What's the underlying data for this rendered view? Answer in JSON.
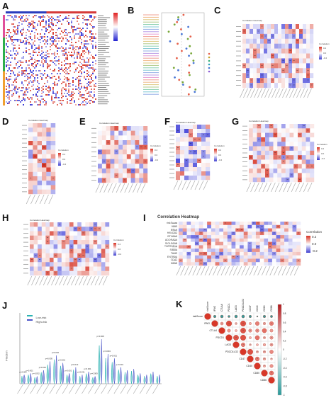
{
  "panels": {
    "A": {
      "letter": "A"
    },
    "B": {
      "letter": "B"
    },
    "C": {
      "letter": "C",
      "title": "Correlation Heatmap",
      "legend_title": "Correlation",
      "legend_ticks": [
        "0.2",
        "0.0",
        "-0.2"
      ]
    },
    "D": {
      "letter": "D",
      "title": "Correlation Heatmap",
      "legend_title": "Correlation",
      "legend_ticks": [
        "0.2",
        "0.0",
        "-0.2"
      ]
    },
    "E": {
      "letter": "E",
      "title": "Correlation Heatmap",
      "legend_title": "Correlation",
      "legend_ticks": [
        "0.2",
        "0.0",
        "-0.2"
      ]
    },
    "F": {
      "letter": "F",
      "title": "Correlation Heatmap",
      "legend_title": "Correlation",
      "legend_ticks": [
        "0.2",
        "0.0",
        "-0.2"
      ]
    },
    "G": {
      "letter": "G",
      "title": "Correlation Heatmap",
      "legend_title": "Correlation",
      "legend_ticks": [
        "0.2",
        "0.0",
        "-0.2"
      ]
    },
    "H": {
      "letter": "H",
      "title": "Correlation Heatmap",
      "legend_title": "Correlation",
      "legend_ticks": [
        "0.2",
        "0.0",
        "-0.2"
      ]
    },
    "I": {
      "letter": "I",
      "title": "Correlation Heatmap",
      "legend_title": "Correlation",
      "legend_ticks": [
        "0.2",
        "0.0",
        "-0.2"
      ],
      "rows": [
        "riskScore",
        "VSIR",
        "BTLA",
        "HAVCR2",
        "BTN3A3",
        "ADORA2A",
        "SIGLEC15",
        "TNFRSF14",
        "SIRPA",
        "TIGIT",
        "ENTPD1",
        "CD47",
        "NT5E"
      ]
    },
    "J": {
      "letter": "J",
      "legend": [
        "Low-risk",
        "High-risk"
      ],
      "ylabel": "Fraction",
      "pvalues": [
        "p<0.001",
        "p=0.001",
        "p=0.032",
        "p=0.034",
        "p=0.005",
        "p=0.002",
        "p=0.001",
        "p<0.001",
        "p=0.012",
        "p=0.031",
        "p<0.001",
        "p=0.009",
        "p=0.008",
        "p=0.004",
        "p=0.001",
        "p<0.001"
      ]
    },
    "K": {
      "letter": "K",
      "genes": [
        "riskScore",
        "IFNG",
        "CTLA4",
        "PDCD1",
        "LAG3",
        "PDCD1LG2",
        "CD47",
        "CD40",
        "CD80",
        "CD86"
      ],
      "legend_ticks": [
        "1",
        "0.8",
        "0.6",
        "0.4",
        "0.2",
        "0",
        "-0.2",
        "-0.4",
        "-0.6",
        "-0.8",
        "-1"
      ]
    }
  },
  "colors": {
    "high": "#d7301f",
    "low": "#3b3bd6",
    "mid": "#ffffff",
    "lowrisk": "#2bb3b3",
    "highrisk": "#4a54c8"
  }
}
